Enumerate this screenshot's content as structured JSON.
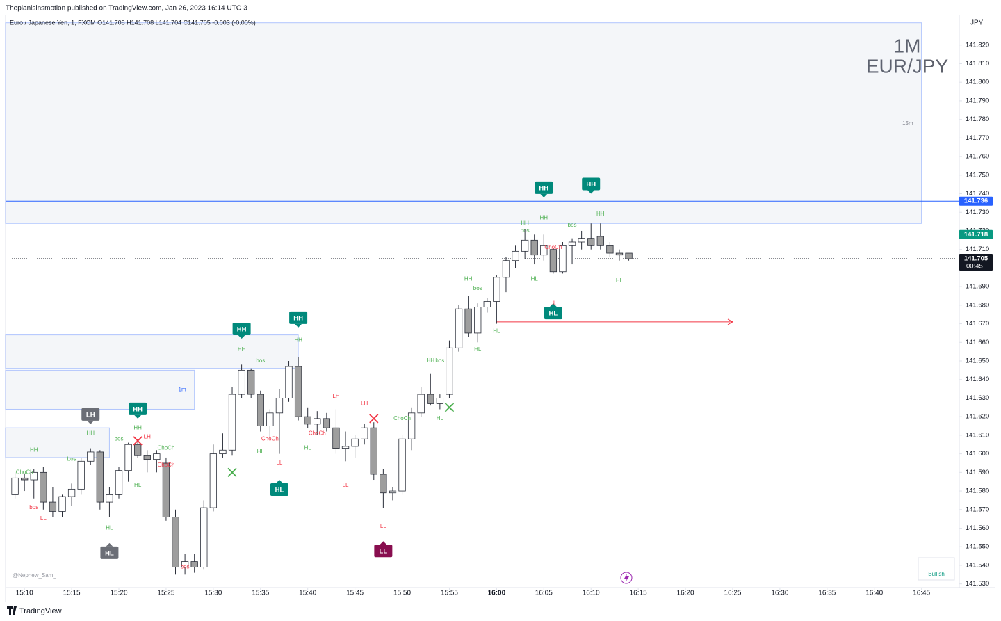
{
  "header": {
    "publisher": "Theplanisinsmotion published on TradingView.com, Jan 26, 2023 16:14 UTC-3",
    "legend": "Euro / Japanese Yen, 1, FXCM  O141.708  H141.708  L141.704  C141.705  -0.003 (-0.00%)",
    "watermark": [
      "1M",
      "EUR/JPY"
    ],
    "axis_unit": "JPY",
    "signature": "@Nephew_Sam_",
    "status": "Bullish",
    "footer": "TradingView"
  },
  "chart_data": {
    "type": "candlestick",
    "x": [
      "15:09",
      "15:10",
      "15:11",
      "15:12",
      "15:13",
      "15:14",
      "15:15",
      "15:16",
      "15:17",
      "15:18",
      "15:19",
      "15:20",
      "15:21",
      "15:22",
      "15:23",
      "15:24",
      "15:25",
      "15:26",
      "15:27",
      "15:28",
      "15:29",
      "15:30",
      "15:31",
      "15:32",
      "15:33",
      "15:34",
      "15:35",
      "15:36",
      "15:37",
      "15:38",
      "15:39",
      "15:40",
      "15:41",
      "15:42",
      "15:43",
      "15:44",
      "15:45",
      "15:46",
      "15:47",
      "15:48",
      "15:49",
      "15:50",
      "15:51",
      "15:52",
      "15:53",
      "15:54",
      "15:55",
      "15:56",
      "15:57",
      "15:58",
      "15:59",
      "16:00",
      "16:01",
      "16:02",
      "16:03",
      "16:04",
      "16:05",
      "16:06",
      "16:07",
      "16:08",
      "16:09",
      "16:10",
      "16:11",
      "16:12",
      "16:13",
      "16:14"
    ],
    "open": [
      141.578,
      141.587,
      141.586,
      141.59,
      141.574,
      141.569,
      141.577,
      141.581,
      141.596,
      141.601,
      141.574,
      141.578,
      141.591,
      141.605,
      141.599,
      141.597,
      141.595,
      141.566,
      141.539,
      141.542,
      141.539,
      141.571,
      141.6,
      141.602,
      141.632,
      141.645,
      141.632,
      141.615,
      141.622,
      141.63,
      141.647,
      141.62,
      141.616,
      141.619,
      141.614,
      141.603,
      141.604,
      141.608,
      141.614,
      141.589,
      141.579,
      141.58,
      141.608,
      141.622,
      141.632,
      141.627,
      141.632,
      141.657,
      141.678,
      141.665,
      141.679,
      141.682,
      141.695,
      141.704,
      141.709,
      141.715,
      141.707,
      141.71,
      141.698,
      141.712,
      141.714,
      141.716,
      141.717,
      141.712,
      141.708,
      141.708
    ],
    "high": [
      141.59,
      141.589,
      141.592,
      141.593,
      141.582,
      141.578,
      141.584,
      141.598,
      141.603,
      141.602,
      141.582,
      141.593,
      141.606,
      141.608,
      141.602,
      141.602,
      141.598,
      141.57,
      141.546,
      141.546,
      141.575,
      141.605,
      141.611,
      141.636,
      141.648,
      141.646,
      141.634,
      141.624,
      141.635,
      141.65,
      141.652,
      141.625,
      141.623,
      141.622,
      141.624,
      141.612,
      141.61,
      141.616,
      141.617,
      141.592,
      141.582,
      141.61,
      141.625,
      141.636,
      141.643,
      141.632,
      141.661,
      141.68,
      141.685,
      141.681,
      141.684,
      141.696,
      141.706,
      141.712,
      141.721,
      141.718,
      141.718,
      141.711,
      141.714,
      141.716,
      141.72,
      141.724,
      141.724,
      141.714,
      141.71,
      141.708
    ],
    "low": [
      141.576,
      141.58,
      141.576,
      141.57,
      141.566,
      141.566,
      141.572,
      141.578,
      141.594,
      141.57,
      141.566,
      141.576,
      141.585,
      141.598,
      141.59,
      141.59,
      141.564,
      141.535,
      141.535,
      141.536,
      141.538,
      141.569,
      141.598,
      141.599,
      141.63,
      141.63,
      141.612,
      141.608,
      141.6,
      141.628,
      141.618,
      141.614,
      141.61,
      141.612,
      141.6,
      141.596,
      141.598,
      141.605,
      141.586,
      141.571,
      141.575,
      141.578,
      141.602,
      141.62,
      141.626,
      141.624,
      141.63,
      141.655,
      141.663,
      141.66,
      141.676,
      141.67,
      141.687,
      141.7,
      141.705,
      141.702,
      141.704,
      141.697,
      141.697,
      141.702,
      141.71,
      141.71,
      141.71,
      141.706,
      141.704,
      141.704
    ],
    "close": [
      141.587,
      141.586,
      141.59,
      141.574,
      141.569,
      141.577,
      141.581,
      141.596,
      141.601,
      141.574,
      141.578,
      141.591,
      141.605,
      141.599,
      141.597,
      141.6,
      141.566,
      141.539,
      141.542,
      141.539,
      141.571,
      141.6,
      141.602,
      141.632,
      141.645,
      141.632,
      141.615,
      141.622,
      141.63,
      141.647,
      141.62,
      141.616,
      141.619,
      141.614,
      141.603,
      141.604,
      141.608,
      141.614,
      141.589,
      141.579,
      141.58,
      141.608,
      141.622,
      141.632,
      141.627,
      141.63,
      141.657,
      141.678,
      141.665,
      141.679,
      141.682,
      141.695,
      141.704,
      141.709,
      141.715,
      141.707,
      141.712,
      141.698,
      141.712,
      141.714,
      141.716,
      141.712,
      141.712,
      141.708,
      141.707,
      141.705
    ],
    "up_color": "#ffffff",
    "down_color": "#9e9e9e",
    "border_color": "#2a2e39",
    "xlim": [
      "15:08",
      "16:49"
    ],
    "xticks": [
      "15:10",
      "15:15",
      "15:20",
      "15:25",
      "15:30",
      "15:35",
      "15:40",
      "15:45",
      "15:50",
      "15:55",
      "16:00",
      "16:05",
      "16:10",
      "16:15",
      "16:20",
      "16:25",
      "16:30",
      "16:35",
      "16:40",
      "16:45"
    ],
    "ylim": [
      141.528,
      141.836
    ],
    "yticks": [
      {
        "value": 141.53,
        "label": "141.530"
      },
      {
        "value": 141.54,
        "label": "141.540"
      },
      {
        "value": 141.55,
        "label": "141.550"
      },
      {
        "value": 141.56,
        "label": "141.560"
      },
      {
        "value": 141.57,
        "label": "141.570"
      },
      {
        "value": 141.58,
        "label": "141.580"
      },
      {
        "value": 141.59,
        "label": "141.590"
      },
      {
        "value": 141.6,
        "label": "141.600"
      },
      {
        "value": 141.61,
        "label": "141.610"
      },
      {
        "value": 141.62,
        "label": "141.620"
      },
      {
        "value": 141.63,
        "label": "141.630"
      },
      {
        "value": 141.64,
        "label": "141.640"
      },
      {
        "value": 141.65,
        "label": "141.650"
      },
      {
        "value": 141.66,
        "label": "141.660"
      },
      {
        "value": 141.67,
        "label": "141.670"
      },
      {
        "value": 141.68,
        "label": "141.680"
      },
      {
        "value": 141.69,
        "label": "141.690"
      },
      {
        "value": 141.7,
        "label": "141.700"
      },
      {
        "value": 141.71,
        "label": "141.710"
      },
      {
        "value": 141.72,
        "label": "141.720"
      },
      {
        "value": 141.73,
        "label": "141.730"
      },
      {
        "value": 141.74,
        "label": "141.740"
      },
      {
        "value": 141.75,
        "label": "141.750"
      },
      {
        "value": 141.76,
        "label": "141.760"
      },
      {
        "value": 141.77,
        "label": "141.770"
      },
      {
        "value": 141.78,
        "label": "141.780"
      },
      {
        "value": 141.79,
        "label": "141.790"
      },
      {
        "value": 141.8,
        "label": "141.800"
      },
      {
        "value": 141.81,
        "label": "141.810"
      },
      {
        "value": 141.82,
        "label": "141.820"
      }
    ],
    "grid": false,
    "zones": [
      {
        "label": "15m",
        "x": [
          "15:08",
          "16:45"
        ],
        "y": [
          141.724,
          141.832
        ]
      },
      {
        "x": [
          "15:08",
          "15:39"
        ],
        "y": [
          141.646,
          141.664
        ]
      },
      {
        "label": "1m",
        "x": [
          "15:08",
          "15:28"
        ],
        "y": [
          141.624,
          141.645
        ]
      },
      {
        "x": [
          "15:08",
          "15:19"
        ],
        "y": [
          141.598,
          141.614
        ]
      }
    ],
    "hlines": [
      {
        "value": 141.736,
        "color": "#2962ff",
        "style": "solid"
      },
      {
        "value": 141.705,
        "color": "#131722",
        "style": "dotted"
      }
    ],
    "arrow": {
      "value": 141.671,
      "x": [
        "16:00",
        "16:25"
      ],
      "color": "#f23645"
    },
    "price_labels": [
      {
        "value": 141.736,
        "label": "141.736",
        "color": "#2962ff"
      },
      {
        "value": 141.718,
        "label": "141.718",
        "color": "#089981"
      },
      {
        "value": 141.705,
        "label": "141.705",
        "color": "#131722",
        "countdown": "00:45"
      }
    ],
    "markers": [
      {
        "time": "15:32",
        "price": 141.59,
        "color": "#4caf50"
      },
      {
        "time": "15:55",
        "price": 141.625,
        "color": "#4caf50"
      },
      {
        "time": "15:22",
        "price": 141.607,
        "color": "#f23645"
      },
      {
        "time": "15:47",
        "price": 141.619,
        "color": "#f23645"
      }
    ],
    "annotations": [
      {
        "text": "HH",
        "time": "15:22",
        "price": 141.619,
        "kind": "badge-down",
        "color": "#00897b"
      },
      {
        "text": "LH",
        "time": "15:17",
        "price": 141.616,
        "kind": "badge-down",
        "color": "#6b6e76"
      },
      {
        "text": "HH",
        "time": "15:33",
        "price": 141.662,
        "kind": "badge-down",
        "color": "#00897b"
      },
      {
        "text": "HH",
        "time": "15:39",
        "price": 141.668,
        "kind": "badge-down",
        "color": "#00897b"
      },
      {
        "text": "HH",
        "time": "16:05",
        "price": 141.738,
        "kind": "badge-down",
        "color": "#00897b"
      },
      {
        "text": "HH",
        "time": "16:10",
        "price": 141.74,
        "kind": "badge-down",
        "color": "#00897b"
      },
      {
        "text": "HL",
        "time": "15:37",
        "price": 141.586,
        "kind": "badge-up",
        "color": "#00897b"
      },
      {
        "text": "HL",
        "time": "16:06",
        "price": 141.681,
        "kind": "badge-up",
        "color": "#00897b"
      },
      {
        "text": "HL",
        "time": "15:19",
        "price": 141.552,
        "kind": "badge-up",
        "color": "#6b6e76"
      },
      {
        "text": "LL",
        "time": "15:48",
        "price": 141.553,
        "kind": "badge-up",
        "color": "#880e4f"
      },
      {
        "text": "HH",
        "time": "15:11",
        "price": 141.602,
        "kind": "label",
        "color": "#4caf50"
      },
      {
        "text": "HH",
        "time": "15:17",
        "price": 141.611,
        "kind": "label",
        "color": "#4caf50"
      },
      {
        "text": "HH",
        "time": "15:22",
        "price": 141.614,
        "kind": "label",
        "color": "#4caf50"
      },
      {
        "text": "HH",
        "time": "15:33",
        "price": 141.656,
        "kind": "label",
        "color": "#4caf50"
      },
      {
        "text": "HH",
        "time": "15:39",
        "price": 141.661,
        "kind": "label",
        "color": "#4caf50"
      },
      {
        "text": "HH",
        "time": "15:53",
        "price": 141.65,
        "kind": "label",
        "color": "#4caf50"
      },
      {
        "text": "HH",
        "time": "15:57",
        "price": 141.694,
        "kind": "label",
        "color": "#4caf50"
      },
      {
        "text": "HH",
        "time": "16:03",
        "price": 141.724,
        "kind": "label",
        "color": "#4caf50"
      },
      {
        "text": "HH",
        "time": "16:05",
        "price": 141.727,
        "kind": "label",
        "color": "#4caf50"
      },
      {
        "text": "HH",
        "time": "16:11",
        "price": 141.729,
        "kind": "label",
        "color": "#4caf50"
      },
      {
        "text": "HL",
        "time": "15:19",
        "price": 141.56,
        "kind": "label",
        "color": "#4caf50"
      },
      {
        "text": "HL",
        "time": "15:22",
        "price": 141.583,
        "kind": "label",
        "color": "#4caf50"
      },
      {
        "text": "HL",
        "time": "15:35",
        "price": 141.601,
        "kind": "label",
        "color": "#4caf50"
      },
      {
        "text": "HL",
        "time": "15:40",
        "price": 141.603,
        "kind": "label",
        "color": "#4caf50"
      },
      {
        "text": "HL",
        "time": "15:54",
        "price": 141.619,
        "kind": "label",
        "color": "#4caf50"
      },
      {
        "text": "HL",
        "time": "15:58",
        "price": 141.656,
        "kind": "label",
        "color": "#4caf50"
      },
      {
        "text": "HL",
        "time": "16:00",
        "price": 141.666,
        "kind": "label",
        "color": "#4caf50"
      },
      {
        "text": "HL",
        "time": "16:04",
        "price": 141.694,
        "kind": "label",
        "color": "#4caf50"
      },
      {
        "text": "HL",
        "time": "16:13",
        "price": 141.693,
        "kind": "label",
        "color": "#4caf50"
      },
      {
        "text": "LH",
        "time": "15:23",
        "price": 141.609,
        "kind": "label",
        "color": "#f23645"
      },
      {
        "text": "LH",
        "time": "15:43",
        "price": 141.631,
        "kind": "label",
        "color": "#f23645"
      },
      {
        "text": "LH",
        "time": "15:46",
        "price": 141.627,
        "kind": "label",
        "color": "#f23645"
      },
      {
        "text": "LL",
        "time": "15:12",
        "price": 141.565,
        "kind": "label",
        "color": "#f23645"
      },
      {
        "text": "LL",
        "time": "15:37",
        "price": 141.595,
        "kind": "label",
        "color": "#f23645"
      },
      {
        "text": "LL",
        "time": "15:44",
        "price": 141.583,
        "kind": "label",
        "color": "#f23645"
      },
      {
        "text": "LL",
        "time": "15:48",
        "price": 141.561,
        "kind": "label",
        "color": "#f23645"
      },
      {
        "text": "LL",
        "time": "16:06",
        "price": 141.681,
        "kind": "label",
        "color": "#f23645"
      },
      {
        "text": "ChoCh",
        "time": "15:10",
        "price": 141.59,
        "kind": "label",
        "color": "#4caf50"
      },
      {
        "text": "ChoCh",
        "time": "15:25",
        "price": 141.603,
        "kind": "label",
        "color": "#4caf50"
      },
      {
        "text": "ChoCh",
        "time": "15:50",
        "price": 141.619,
        "kind": "label",
        "color": "#4caf50"
      },
      {
        "text": "bos",
        "time": "15:15",
        "price": 141.597,
        "kind": "label",
        "color": "#4caf50"
      },
      {
        "text": "bos",
        "time": "15:20",
        "price": 141.608,
        "kind": "label",
        "color": "#4caf50"
      },
      {
        "text": "bos",
        "time": "15:35",
        "price": 141.65,
        "kind": "label",
        "color": "#4caf50"
      },
      {
        "text": "bos",
        "time": "15:54",
        "price": 141.65,
        "kind": "label",
        "color": "#4caf50"
      },
      {
        "text": "bos",
        "time": "15:58",
        "price": 141.689,
        "kind": "label",
        "color": "#4caf50"
      },
      {
        "text": "bos",
        "time": "16:03",
        "price": 141.72,
        "kind": "label",
        "color": "#4caf50"
      },
      {
        "text": "bos",
        "time": "16:08",
        "price": 141.723,
        "kind": "label",
        "color": "#4caf50"
      },
      {
        "text": "bos",
        "time": "15:11",
        "price": 141.571,
        "kind": "label",
        "color": "#f23645"
      },
      {
        "text": "bos",
        "time": "15:27",
        "price": 141.539,
        "kind": "label",
        "color": "#f23645"
      },
      {
        "text": "ChoCh",
        "time": "15:25",
        "price": 141.594,
        "kind": "label",
        "color": "#f23645"
      },
      {
        "text": "ChoCh",
        "time": "15:36",
        "price": 141.608,
        "kind": "label",
        "color": "#f23645"
      },
      {
        "text": "ChoCh",
        "time": "15:41",
        "price": 141.611,
        "kind": "label",
        "color": "#f23645"
      },
      {
        "text": "ChoCh",
        "time": "16:06",
        "price": 141.711,
        "kind": "label",
        "color": "#f23645"
      }
    ]
  }
}
